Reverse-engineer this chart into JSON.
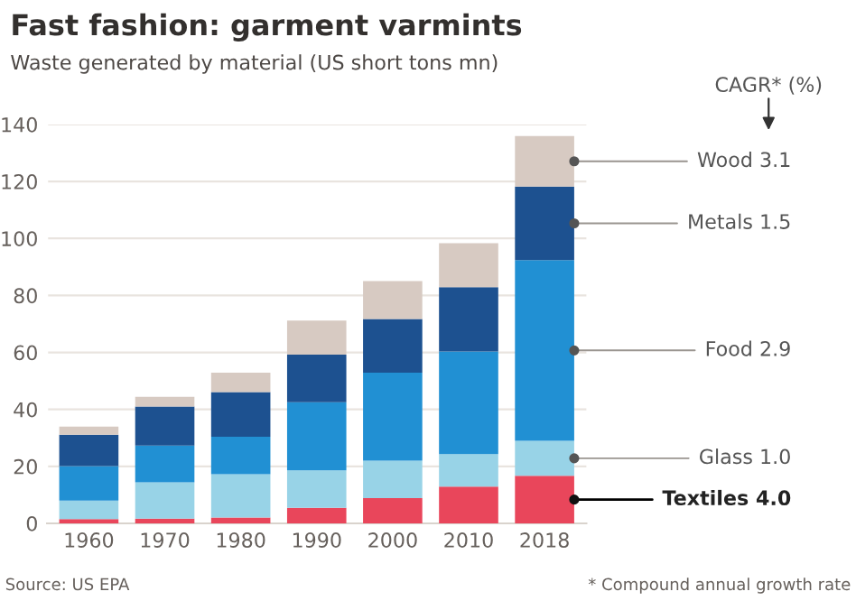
{
  "chart_data": {
    "type": "bar",
    "stacked": true,
    "title": "Fast fashion: garment varmints",
    "subtitle": "Waste generated by material (US short tons mn)",
    "legend_title": "CAGR* (%)",
    "categories": [
      "1960",
      "1970",
      "1980",
      "1990",
      "2000",
      "2010",
      "2018"
    ],
    "series": [
      {
        "name": "Textiles 4.0",
        "color": "#e9465b",
        "values": [
          1.5,
          1.7,
          2.1,
          5.5,
          8.9,
          12.9,
          16.7
        ]
      },
      {
        "name": "Glass 1.0",
        "color": "#98d3e7",
        "values": [
          6.5,
          12.7,
          15.2,
          13.1,
          13.1,
          11.4,
          12.3
        ]
      },
      {
        "name": "Food 2.9",
        "color": "#2190d3",
        "values": [
          12.1,
          12.9,
          13.1,
          23.9,
          30.9,
          36.0,
          63.4
        ]
      },
      {
        "name": "Metals 1.5",
        "color": "#1d5190",
        "values": [
          11.0,
          13.7,
          15.7,
          16.7,
          18.8,
          22.6,
          25.8
        ]
      },
      {
        "name": "Wood 3.1",
        "color": "#d7cac2",
        "values": [
          2.9,
          3.4,
          6.8,
          12.0,
          13.3,
          15.4,
          17.7
        ]
      }
    ],
    "ylim": [
      0,
      140
    ],
    "yticks": [
      0,
      20,
      40,
      60,
      80,
      100,
      120,
      140
    ],
    "grid": "y",
    "legend": "right",
    "annotations": [
      "Source: US EPA",
      "* Compound annual growth rate"
    ]
  }
}
